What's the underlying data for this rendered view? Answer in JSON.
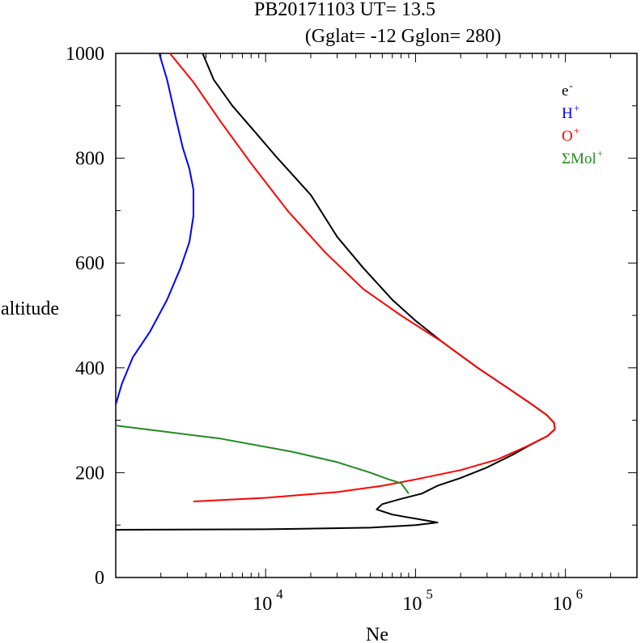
{
  "chart_data": {
    "type": "line",
    "title_line1": "PB20171103   UT=  13.5",
    "title_line2": "(Gglat= -12   Gglon=  280)",
    "xlabel": "Ne",
    "ylabel": "altitude",
    "x_scale": "log",
    "xlim": [
      1000,
      3000000
    ],
    "ylim": [
      0,
      1000
    ],
    "y_ticks": [
      0,
      200,
      400,
      600,
      800,
      1000
    ],
    "x_ticks": [
      {
        "value": 10000,
        "base": "10",
        "exp": "4"
      },
      {
        "value": 100000,
        "base": "10",
        "exp": "5"
      },
      {
        "value": 1000000,
        "base": "10",
        "exp": "6"
      }
    ],
    "legend_position": "top-right",
    "series": [
      {
        "name": "e",
        "sup": "-",
        "color": "#000000",
        "points": [
          [
            1000,
            91
          ],
          [
            10000,
            92
          ],
          [
            50000,
            95
          ],
          [
            100000,
            100
          ],
          [
            140000,
            105
          ],
          [
            70000,
            120
          ],
          [
            55000,
            130
          ],
          [
            60000,
            140
          ],
          [
            80000,
            150
          ],
          [
            110000,
            160
          ],
          [
            140000,
            175
          ],
          [
            200000,
            190
          ],
          [
            300000,
            210
          ],
          [
            450000,
            235
          ],
          [
            600000,
            255
          ],
          [
            760000,
            270
          ],
          [
            850000,
            283
          ],
          [
            840000,
            295
          ],
          [
            750000,
            310
          ],
          [
            600000,
            330
          ],
          [
            420000,
            360
          ],
          [
            260000,
            400
          ],
          [
            150000,
            450
          ],
          [
            100000,
            490
          ],
          [
            70000,
            530
          ],
          [
            45000,
            590
          ],
          [
            30000,
            650
          ],
          [
            20000,
            730
          ],
          [
            12000,
            800
          ],
          [
            8500,
            850
          ],
          [
            6000,
            900
          ],
          [
            4500,
            950
          ],
          [
            3800,
            1000
          ]
        ]
      },
      {
        "name": "H",
        "sup": "+",
        "color": "#0000ff",
        "points": [
          [
            1000,
            330
          ],
          [
            1100,
            370
          ],
          [
            1300,
            420
          ],
          [
            1700,
            470
          ],
          [
            2200,
            530
          ],
          [
            2700,
            590
          ],
          [
            3100,
            640
          ],
          [
            3300,
            690
          ],
          [
            3300,
            740
          ],
          [
            3100,
            780
          ],
          [
            2800,
            820
          ],
          [
            2500,
            880
          ],
          [
            2200,
            950
          ],
          [
            1950,
            1000
          ]
        ]
      },
      {
        "name": "O",
        "sup": "+",
        "color": "#ff0000",
        "points": [
          [
            3300,
            145
          ],
          [
            10000,
            152
          ],
          [
            30000,
            163
          ],
          [
            60000,
            175
          ],
          [
            100000,
            187
          ],
          [
            200000,
            205
          ],
          [
            350000,
            225
          ],
          [
            550000,
            250
          ],
          [
            760000,
            270
          ],
          [
            850000,
            283
          ],
          [
            840000,
            295
          ],
          [
            750000,
            310
          ],
          [
            600000,
            330
          ],
          [
            420000,
            360
          ],
          [
            260000,
            400
          ],
          [
            150000,
            450
          ],
          [
            80000,
            500
          ],
          [
            45000,
            550
          ],
          [
            25000,
            620
          ],
          [
            14000,
            700
          ],
          [
            8000,
            790
          ],
          [
            5000,
            870
          ],
          [
            3300,
            945
          ],
          [
            2300,
            1000
          ]
        ]
      },
      {
        "name": "ΣMol",
        "sup": "+",
        "color": "#228b22",
        "points": [
          [
            1000,
            290
          ],
          [
            5000,
            265
          ],
          [
            15000,
            240
          ],
          [
            30000,
            220
          ],
          [
            50000,
            200
          ],
          [
            65000,
            188
          ],
          [
            80000,
            180
          ],
          [
            85000,
            170
          ],
          [
            90000,
            160
          ]
        ]
      }
    ]
  }
}
